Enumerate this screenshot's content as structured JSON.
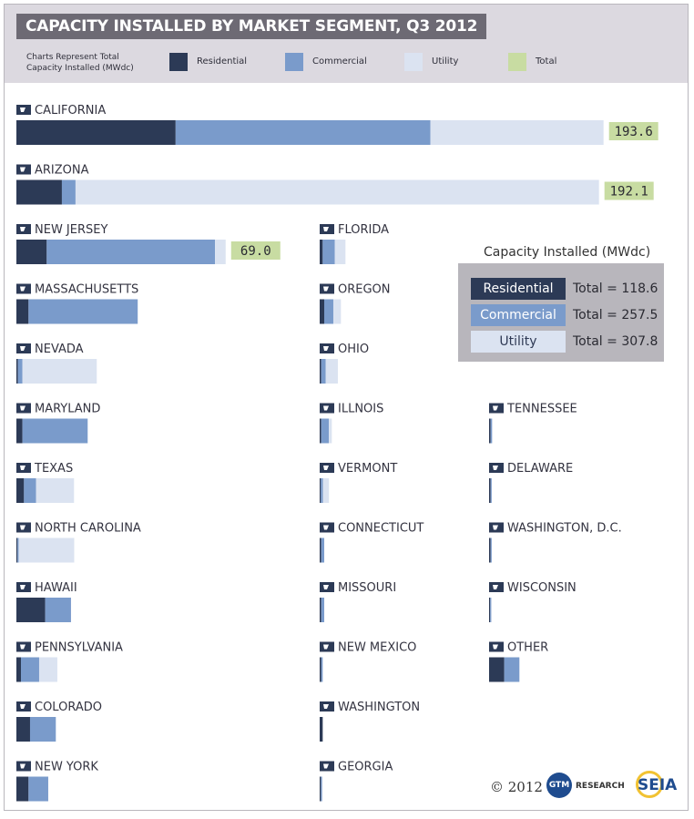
{
  "header": {
    "title": "CAPACITY INSTALLED BY MARKET SEGMENT, Q3 2012",
    "legend_note_line1": "Charts Represent Total",
    "legend_note_line2": "Capacity Installed (MWdc)",
    "legend": [
      {
        "label": "Residential",
        "color": "#2c3a56"
      },
      {
        "label": "Commercial",
        "color": "#7a9bcb"
      },
      {
        "label": "Utility",
        "color": "#dbe3f1"
      },
      {
        "label": "Total",
        "color": "#c8dca2"
      }
    ]
  },
  "colors": {
    "residential": "#2c3a56",
    "commercial": "#7a9bcb",
    "utility": "#dbe3f1",
    "total": "#c8dca2"
  },
  "summary": {
    "title": "Capacity Installed (MWdc)",
    "rows": [
      {
        "label": "Residential",
        "value_text": "Total = 118.6",
        "value": 118.6
      },
      {
        "label": "Commercial",
        "value_text": "Total = 257.5",
        "value": 257.5
      },
      {
        "label": "Utility",
        "value_text": "Total = 307.8",
        "value": 307.8
      }
    ]
  },
  "footer": {
    "copyright": "© 2012",
    "gtm_logo": "GTM",
    "gtm_research": "RESEARCH",
    "seia": "SEIA"
  },
  "chart_data": {
    "type": "bar",
    "orientation": "horizontal",
    "stacked": true,
    "unit": "MWdc",
    "series_names": [
      "Residential",
      "Commercial",
      "Utility"
    ],
    "states": [
      {
        "name": "CALIFORNIA",
        "total_label": "193.6",
        "values": [
          52.5,
          84.0,
          57.1
        ],
        "icon": "california-shape-icon"
      },
      {
        "name": "ARIZONA",
        "total_label": "192.1",
        "values": [
          15.0,
          4.5,
          172.6
        ],
        "icon": "arizona-shape-icon"
      },
      {
        "name": "NEW JERSEY",
        "total_label": "69.0",
        "values": [
          10.0,
          55.5,
          3.5
        ],
        "icon": "new-jersey-shape-icon"
      },
      {
        "name": "MASSACHUSETTS",
        "values": [
          4.0,
          36.0,
          0
        ],
        "icon": "massachusetts-shape-icon"
      },
      {
        "name": "NEVADA",
        "values": [
          0.5,
          1.5,
          24.5
        ],
        "icon": "nevada-shape-icon"
      },
      {
        "name": "MARYLAND",
        "values": [
          2.0,
          21.5,
          0
        ],
        "icon": "maryland-shape-icon"
      },
      {
        "name": "TEXAS",
        "values": [
          2.5,
          4.0,
          12.5
        ],
        "icon": "texas-shape-icon"
      },
      {
        "name": "NORTH CAROLINA",
        "values": [
          0.3,
          0.4,
          18.3
        ],
        "icon": "north-carolina-shape-icon"
      },
      {
        "name": "HAWAII",
        "values": [
          9.5,
          8.5,
          0
        ],
        "icon": "hawaii-shape-icon"
      },
      {
        "name": "PENNSYLVANIA",
        "values": [
          1.5,
          6.0,
          6.0
        ],
        "icon": "pennsylvania-shape-icon"
      },
      {
        "name": "COLORADO",
        "values": [
          4.5,
          8.5,
          0
        ],
        "icon": "colorado-shape-icon"
      },
      {
        "name": "NEW YORK",
        "values": [
          4.0,
          6.5,
          0
        ],
        "icon": "new-york-shape-icon"
      },
      {
        "name": "FLORIDA",
        "values": [
          1.0,
          4.0,
          3.5
        ],
        "icon": "florida-shape-icon"
      },
      {
        "name": "OREGON",
        "values": [
          1.5,
          3.0,
          2.5
        ],
        "icon": "oregon-shape-icon"
      },
      {
        "name": "OHIO",
        "values": [
          0.5,
          1.5,
          4.0
        ],
        "icon": "ohio-shape-icon"
      },
      {
        "name": "ILLNOIS",
        "values": [
          0.5,
          2.5,
          1.0
        ],
        "icon": "illinois-shape-icon"
      },
      {
        "name": "VERMONT",
        "values": [
          0.3,
          0.7,
          2.0
        ],
        "icon": "vermont-shape-icon"
      },
      {
        "name": "CONNECTICUT",
        "values": [
          0.5,
          1.0,
          0
        ],
        "icon": "connecticut-shape-icon"
      },
      {
        "name": "MISSOURI",
        "values": [
          0.5,
          1.0,
          0
        ],
        "icon": "missouri-shape-icon"
      },
      {
        "name": "NEW MEXICO",
        "values": [
          0.5,
          0.5,
          0
        ],
        "icon": "new-mexico-shape-icon"
      },
      {
        "name": "WASHINGTON",
        "values": [
          1.0,
          0,
          0
        ],
        "icon": "washington-shape-icon"
      },
      {
        "name": "GEORGIA",
        "values": [
          0.4,
          0.4,
          0
        ],
        "icon": "georgia-shape-icon"
      },
      {
        "name": "TENNESSEE",
        "values": [
          0.5,
          0.5,
          0
        ],
        "icon": "tennessee-shape-icon"
      },
      {
        "name": "DELAWARE",
        "values": [
          0.5,
          0.3,
          0
        ],
        "icon": "delaware-shape-icon"
      },
      {
        "name": "WASHINGTON, D.C.",
        "values": [
          0.5,
          0.3,
          0
        ],
        "icon": "washington-dc-shape-icon"
      },
      {
        "name": "WISCONSIN",
        "values": [
          0.2,
          0.2,
          0
        ],
        "icon": "wisconsin-shape-icon"
      },
      {
        "name": "OTHER",
        "values": [
          5.0,
          5.0,
          0
        ],
        "icon": "other-states-shape-icon"
      }
    ]
  }
}
